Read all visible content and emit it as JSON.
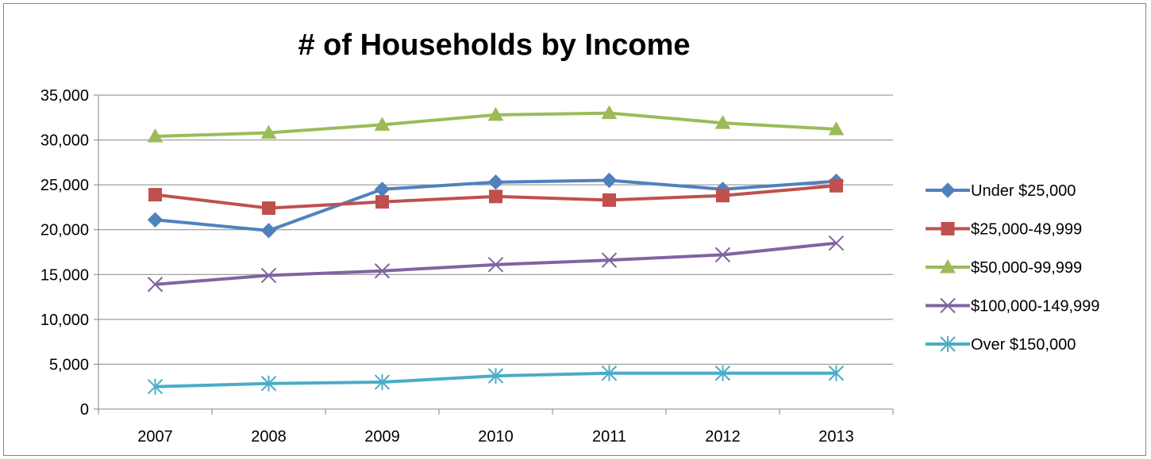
{
  "chart_data": {
    "type": "line",
    "title": "# of Households by Income",
    "x": [
      "2007",
      "2008",
      "2009",
      "2010",
      "2011",
      "2012",
      "2013"
    ],
    "ylim": [
      0,
      35000
    ],
    "yticks": [
      0,
      5000,
      10000,
      15000,
      20000,
      25000,
      30000,
      35000
    ],
    "ytick_labels": [
      "0",
      "5,000",
      "10,000",
      "15,000",
      "20,000",
      "25,000",
      "30,000",
      "35,000"
    ],
    "grid": true,
    "legend_position": "right",
    "series": [
      {
        "name": "Under $25,000",
        "color": "#4F81BD",
        "marker": "diamond",
        "values": [
          21100,
          19900,
          24500,
          25300,
          25500,
          24500,
          25400
        ]
      },
      {
        "name": "$25,000-49,999",
        "color": "#C0504D",
        "marker": "square",
        "values": [
          23900,
          22400,
          23100,
          23700,
          23300,
          23800,
          24900
        ]
      },
      {
        "name": "$50,000-99,999",
        "color": "#9BBB59",
        "marker": "triangle",
        "values": [
          30400,
          30800,
          31700,
          32800,
          33000,
          31900,
          31200
        ]
      },
      {
        "name": "$100,000-149,999",
        "color": "#8064A2",
        "marker": "x",
        "values": [
          13900,
          14900,
          15400,
          16100,
          16600,
          17200,
          18500
        ]
      },
      {
        "name": "Over $150,000",
        "color": "#4BACC6",
        "marker": "star",
        "values": [
          2500,
          2850,
          3000,
          3700,
          4000,
          4000,
          4000
        ]
      }
    ]
  }
}
